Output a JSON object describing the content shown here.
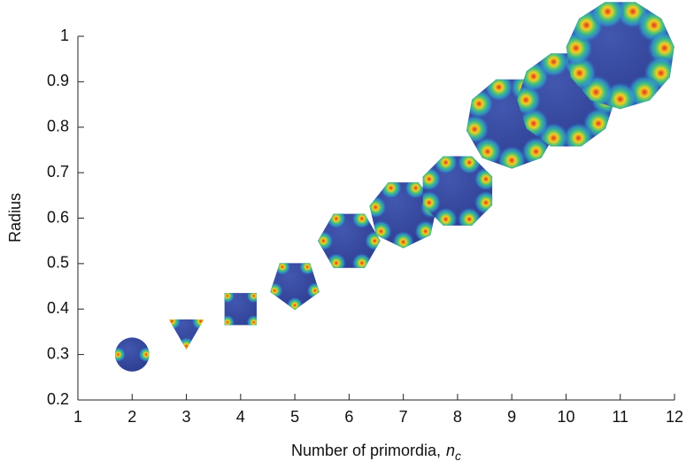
{
  "chart_data": {
    "type": "scatter",
    "xlabel": {
      "text": "Number of primordia,",
      "symbol": "n",
      "subscript": "c"
    },
    "ylabel": "Radius",
    "x": [
      2,
      3,
      4,
      5,
      6,
      7,
      8,
      9,
      10,
      11
    ],
    "values": [
      0.3,
      0.355,
      0.4,
      0.455,
      0.55,
      0.61,
      0.66,
      0.81,
      0.86,
      0.96
    ],
    "color": "#35489e",
    "xlim": [
      1,
      12
    ],
    "xticks": [
      1,
      2,
      3,
      4,
      5,
      6,
      7,
      8,
      9,
      10,
      11,
      12
    ],
    "ylim": [
      0.2,
      1
    ],
    "yticks": [
      0.2,
      0.3,
      0.4,
      0.5,
      0.6,
      0.7,
      0.8,
      0.9,
      1
    ]
  }
}
